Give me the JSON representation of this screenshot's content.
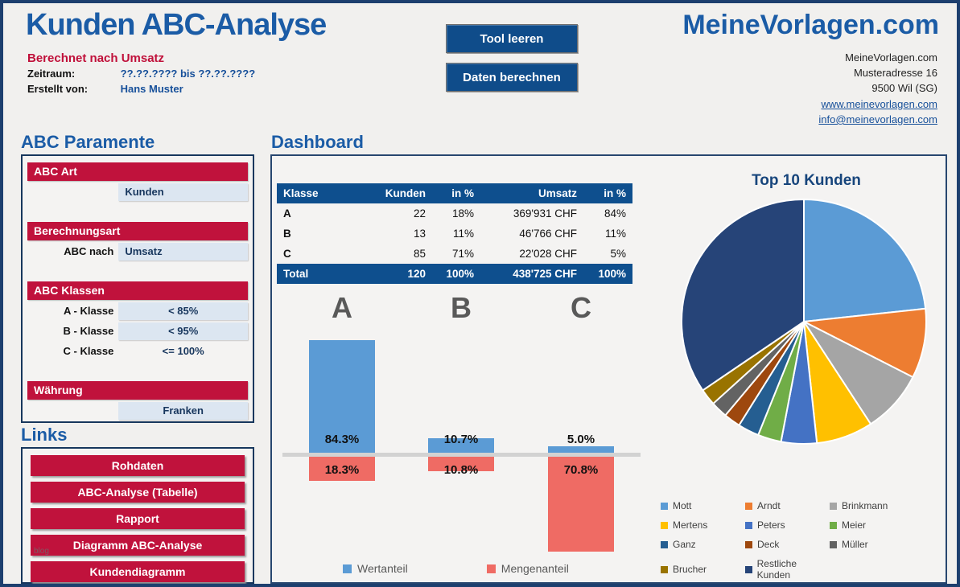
{
  "header": {
    "title": "Kunden ABC-Analyse",
    "subtitle": "Berechnet nach Umsatz",
    "fields": [
      {
        "label": "Zeitraum:",
        "value": "??.??.???? bis ??.??.????"
      },
      {
        "label": "Erstellt von:",
        "value": "Hans Muster"
      }
    ],
    "buttons": [
      {
        "label": "Tool leeren"
      },
      {
        "label": "Daten berechnen"
      }
    ],
    "brand": {
      "title": "MeineVorlagen.com",
      "address_lines": [
        "MeineVorlagen.com",
        "Musteradresse 16",
        "9500 Wil (SG)"
      ],
      "links": [
        "www.meinevorlagen.com",
        "info@meinevorlagen.com"
      ]
    }
  },
  "parameters": {
    "heading": "ABC Paramente",
    "sections": [
      {
        "header": "ABC Art",
        "rows": [
          {
            "label": "",
            "value": "Kunden",
            "cell": true,
            "align": "left",
            "editable": true
          }
        ]
      },
      {
        "header": "Berechnungsart",
        "rows": [
          {
            "label": "ABC nach",
            "value": "Umsatz",
            "cell": true,
            "align": "left",
            "editable": true
          }
        ]
      },
      {
        "header": "ABC Klassen",
        "rows": [
          {
            "label": "A - Klasse",
            "value": "< 85%",
            "cell": true,
            "align": "center",
            "editable": true
          },
          {
            "label": "B - Klasse",
            "value": "< 95%",
            "cell": true,
            "align": "center",
            "editable": true
          },
          {
            "label": "C - Klasse",
            "value": "<= 100%",
            "cell": false,
            "align": "center",
            "editable": false
          }
        ]
      },
      {
        "header": "Währung",
        "rows": [
          {
            "label": "",
            "value": "Franken",
            "cell": true,
            "align": "center",
            "editable": true
          }
        ]
      }
    ]
  },
  "links": {
    "heading": "Links",
    "items": [
      "Rohdaten",
      "ABC-Analyse (Tabelle)",
      "Rapport",
      "Diagramm ABC-Analyse",
      "Kundendiagramm"
    ]
  },
  "watermark": "blog",
  "dashboard": {
    "heading": "Dashboard",
    "table": {
      "headers": [
        "Klasse",
        "Kunden",
        "in %",
        "Umsatz",
        "in %"
      ],
      "rows": [
        [
          "A",
          "22",
          "18%",
          "369'931 CHF",
          "84%"
        ],
        [
          "B",
          "13",
          "11%",
          "46'766 CHF",
          "11%"
        ],
        [
          "C",
          "85",
          "71%",
          "22'028 CHF",
          "5%"
        ]
      ],
      "total": [
        "Total",
        "120",
        "100%",
        "438'725 CHF",
        "100%"
      ]
    }
  },
  "chart_data": [
    {
      "type": "bar",
      "title": "",
      "categories": [
        "A",
        "B",
        "C"
      ],
      "series": [
        {
          "name": "Wertanteil",
          "values": [
            84.3,
            10.7,
            5.0
          ],
          "color": "#5b9bd5",
          "direction": "up"
        },
        {
          "name": "Mengenanteil",
          "values": [
            18.3,
            10.8,
            70.8
          ],
          "color": "#ef6b64",
          "direction": "down"
        }
      ],
      "value_label_format": "0.0%",
      "ylim": [
        0,
        90
      ],
      "grid": false,
      "legend_position": "bottom",
      "baseline_color": "#d2d2d2",
      "category_letter_color": "#595959"
    },
    {
      "type": "pie",
      "title": "Top 10 Kunden",
      "labels": [
        "Mott",
        "Arndt",
        "Brinkmann",
        "Mertens",
        "Peters",
        "Meier",
        "Ganz",
        "Deck",
        "Müller",
        "Brucher",
        "Restliche Kunden"
      ],
      "values": [
        23.3,
        9.2,
        8.3,
        7.5,
        4.7,
        3.1,
        2.8,
        2.2,
        2.2,
        2.2,
        34.5
      ],
      "values_note": "share of total, estimated from slice angles",
      "colors": [
        "#5b9bd5",
        "#ed7d31",
        "#a5a5a5",
        "#ffc000",
        "#4472c4",
        "#70ad47",
        "#255e91",
        "#9e480e",
        "#636363",
        "#997300",
        "#264478"
      ],
      "legend_position": "bottom",
      "slice_border_color": "#ffffff"
    }
  ],
  "colors": {
    "accent_blue": "#1b5ca6",
    "crimson": "#c0123c",
    "dark_fill_blue": "#0e4f8e",
    "light_cell_blue": "#dce6f1",
    "panel_border_navy": "#17375d",
    "page_background": "#f1f0ee"
  }
}
